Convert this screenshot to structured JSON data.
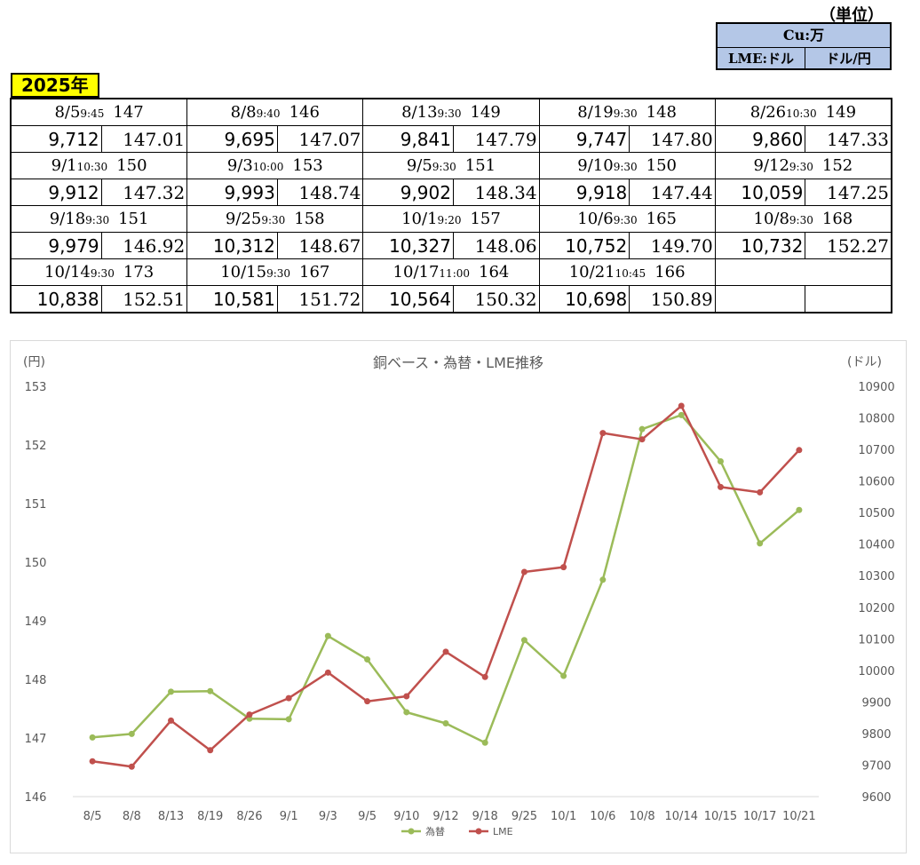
{
  "unit": {
    "label": "（単位）",
    "cu": "Cu:万",
    "lme": "LME:ドル",
    "fx": "ドル/円"
  },
  "year": "2025年",
  "entries": [
    {
      "date": "8/5",
      "time": "9:45",
      "base": "147",
      "lme": "9,712",
      "fx": "147.01"
    },
    {
      "date": "8/8",
      "time": "9:40",
      "base": "146",
      "lme": "9,695",
      "fx": "147.07"
    },
    {
      "date": "8/13",
      "time": "9:30",
      "base": "149",
      "lme": "9,841",
      "fx": "147.79"
    },
    {
      "date": "8/19",
      "time": "9:30",
      "base": "148",
      "lme": "9,747",
      "fx": "147.80"
    },
    {
      "date": "8/26",
      "time": "10:30",
      "base": "149",
      "lme": "9,860",
      "fx": "147.33"
    },
    {
      "date": "9/1",
      "time": "10:30",
      "base": "150",
      "lme": "9,912",
      "fx": "147.32"
    },
    {
      "date": "9/3",
      "time": "10:00",
      "base": "153",
      "lme": "9,993",
      "fx": "148.74"
    },
    {
      "date": "9/5",
      "time": "9:30",
      "base": "151",
      "lme": "9,902",
      "fx": "148.34"
    },
    {
      "date": "9/10",
      "time": "9:30",
      "base": "150",
      "lme": "9,918",
      "fx": "147.44"
    },
    {
      "date": "9/12",
      "time": "9:30",
      "base": "152",
      "lme": "10,059",
      "fx": "147.25"
    },
    {
      "date": "9/18",
      "time": "9:30",
      "base": "151",
      "lme": "9,979",
      "fx": "146.92"
    },
    {
      "date": "9/25",
      "time": "9:30",
      "base": "158",
      "lme": "10,312",
      "fx": "148.67"
    },
    {
      "date": "10/1",
      "time": "9:20",
      "base": "157",
      "lme": "10,327",
      "fx": "148.06"
    },
    {
      "date": "10/6",
      "time": "9:30",
      "base": "165",
      "lme": "10,752",
      "fx": "149.70"
    },
    {
      "date": "10/8",
      "time": "9:30",
      "base": "168",
      "lme": "10,732",
      "fx": "152.27"
    },
    {
      "date": "10/14",
      "time": "9:30",
      "base": "173",
      "lme": "10,838",
      "fx": "152.51"
    },
    {
      "date": "10/15",
      "time": "9:30",
      "base": "167",
      "lme": "10,581",
      "fx": "151.72"
    },
    {
      "date": "10/17",
      "time": "11:00",
      "base": "164",
      "lme": "10,564",
      "fx": "150.32"
    },
    {
      "date": "10/21",
      "time": "10:45",
      "base": "166",
      "lme": "10,698",
      "fx": "150.89"
    }
  ],
  "chart_data": {
    "type": "line",
    "title": "銅ベース・為替・LME推移",
    "ylabel_left": "(円)",
    "ylabel_right": "(ドル)",
    "categories": [
      "8/5",
      "8/8",
      "8/13",
      "8/19",
      "8/26",
      "9/1",
      "9/3",
      "9/5",
      "9/10",
      "9/12",
      "9/18",
      "9/25",
      "10/1",
      "10/6",
      "10/8",
      "10/14",
      "10/15",
      "10/17",
      "10/21"
    ],
    "ylim_left": [
      146,
      153
    ],
    "yticks_left": [
      146,
      147,
      148,
      149,
      150,
      151,
      152,
      153
    ],
    "ylim_right": [
      9600,
      10900
    ],
    "yticks_right": [
      9600,
      9700,
      9800,
      9900,
      10000,
      10100,
      10200,
      10300,
      10400,
      10500,
      10600,
      10700,
      10800,
      10900
    ],
    "legend_position": "bottom",
    "grid": false,
    "series": [
      {
        "name": "為替",
        "axis": "left",
        "color": "#9bbb59",
        "values": [
          147.01,
          147.07,
          147.79,
          147.8,
          147.33,
          147.32,
          148.74,
          148.34,
          147.44,
          147.25,
          146.92,
          148.67,
          148.06,
          149.7,
          152.27,
          152.51,
          151.72,
          150.32,
          150.89
        ]
      },
      {
        "name": "LME",
        "axis": "right",
        "color": "#c0504d",
        "values": [
          9712,
          9695,
          9841,
          9747,
          9860,
          9912,
          9993,
          9902,
          9918,
          10059,
          9979,
          10312,
          10327,
          10752,
          10732,
          10838,
          10581,
          10564,
          10698
        ]
      }
    ]
  }
}
